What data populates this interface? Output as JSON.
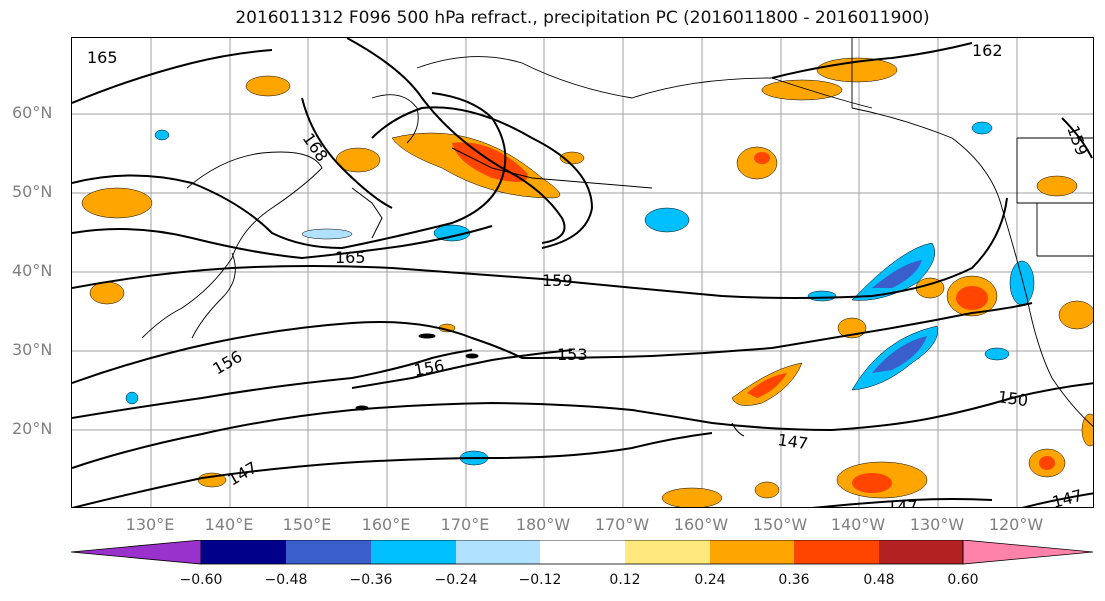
{
  "title": "2016011312 F096 500 hPa refract., precipitation PC (2016011800 - 2016011900)",
  "map": {
    "lat_labels": [
      "60°N",
      "50°N",
      "40°N",
      "30°N",
      "20°N"
    ],
    "lon_labels": [
      "130°E",
      "140°E",
      "150°E",
      "160°E",
      "170°E",
      "180°W",
      "170°W",
      "160°W",
      "150°W",
      "140°W",
      "130°W",
      "120°W"
    ],
    "contour_labels": [
      "165",
      "162",
      "168",
      "159",
      "165",
      "159",
      "153",
      "156",
      "156",
      "150",
      "147",
      "147",
      "147",
      "147"
    ],
    "pos_fill": "#ffa500",
    "neg_fill": "#00bfff"
  },
  "colorbar": {
    "ticks": [
      "−0.60",
      "−0.48",
      "−0.36",
      "−0.24",
      "−0.12",
      "0.12",
      "0.24",
      "0.36",
      "0.48",
      "0.60"
    ],
    "colors": [
      "#9932cc",
      "#00008b",
      "#3a5fcd",
      "#00bfff",
      "#b0e2ff",
      "#ffffff",
      "#ffe87c",
      "#ffa500",
      "#ff4500",
      "#b22222",
      "#ff82ab"
    ]
  }
}
